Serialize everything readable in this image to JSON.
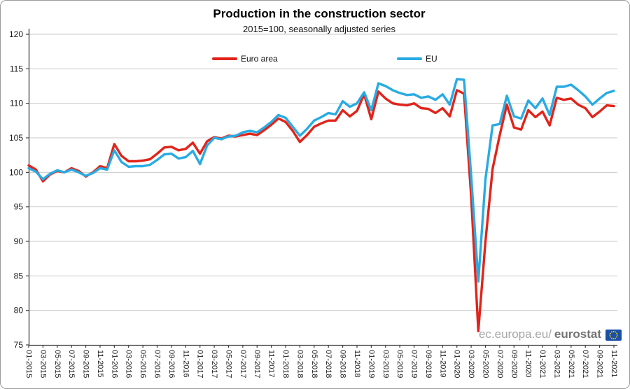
{
  "page": {
    "watermark_prefix": "ec.europa.eu/",
    "watermark_bold": "eurostat"
  },
  "chart_data": {
    "type": "line",
    "title": "Production in the construction sector",
    "subtitle": "2015=100, seasonally adjusted series",
    "legend_position": "top",
    "grid": true,
    "ylim": [
      75,
      120
    ],
    "ytick_step": 5,
    "x_tick_every": 2,
    "x": [
      "01-2015",
      "02-2015",
      "03-2015",
      "04-2015",
      "05-2015",
      "06-2015",
      "07-2015",
      "08-2015",
      "09-2015",
      "10-2015",
      "11-2015",
      "12-2015",
      "01-2016",
      "02-2016",
      "03-2016",
      "04-2016",
      "05-2016",
      "06-2016",
      "07-2016",
      "08-2016",
      "09-2016",
      "10-2016",
      "11-2016",
      "12-2016",
      "01-2017",
      "02-2017",
      "03-2017",
      "04-2017",
      "05-2017",
      "06-2017",
      "07-2017",
      "08-2017",
      "09-2017",
      "10-2017",
      "11-2017",
      "12-2017",
      "01-2018",
      "02-2018",
      "03-2018",
      "04-2018",
      "05-2018",
      "06-2018",
      "07-2018",
      "08-2018",
      "09-2018",
      "10-2018",
      "11-2018",
      "12-2018",
      "01-2019",
      "02-2019",
      "03-2019",
      "04-2019",
      "05-2019",
      "06-2019",
      "07-2019",
      "08-2019",
      "09-2019",
      "10-2019",
      "11-2019",
      "12-2019",
      "01-2020",
      "02-2020",
      "03-2020",
      "04-2020",
      "05-2020",
      "06-2020",
      "07-2020",
      "08-2020",
      "09-2020",
      "10-2020",
      "11-2020",
      "12-2020",
      "01-2021",
      "02-2021",
      "03-2021",
      "04-2021",
      "05-2021",
      "06-2021",
      "07-2021",
      "08-2021",
      "09-2021",
      "10-2021",
      "11-2021"
    ],
    "series": [
      {
        "name": "Euro area",
        "color": "#e2231a",
        "values": [
          101.0,
          100.4,
          98.7,
          99.7,
          100.2,
          100.0,
          100.6,
          100.2,
          99.4,
          100.0,
          100.9,
          100.6,
          104.1,
          102.4,
          101.6,
          101.6,
          101.7,
          101.9,
          102.7,
          103.6,
          103.7,
          103.2,
          103.4,
          104.3,
          102.7,
          104.5,
          105.1,
          104.9,
          105.3,
          105.2,
          105.4,
          105.6,
          105.4,
          106.1,
          106.9,
          107.8,
          107.3,
          106.0,
          104.4,
          105.4,
          106.6,
          107.1,
          107.5,
          107.5,
          109.0,
          108.1,
          108.9,
          111.3,
          107.7,
          111.7,
          110.7,
          110.0,
          109.8,
          109.7,
          110.0,
          109.3,
          109.2,
          108.6,
          109.3,
          108.1,
          111.9,
          111.4,
          96.5,
          77.0,
          90.0,
          100.5,
          105.4,
          109.8,
          106.5,
          106.2,
          109.0,
          108.0,
          108.8,
          106.8,
          110.8,
          110.5,
          110.7,
          109.8,
          109.3,
          108.0,
          108.8,
          109.7,
          109.6
        ]
      },
      {
        "name": "EU",
        "color": "#29abe2",
        "values": [
          100.6,
          100.1,
          99.0,
          99.8,
          100.3,
          100.0,
          100.4,
          100.0,
          99.5,
          99.9,
          100.6,
          100.4,
          103.2,
          101.5,
          100.8,
          100.9,
          100.9,
          101.1,
          101.8,
          102.6,
          102.7,
          102.0,
          102.2,
          103.1,
          101.2,
          103.9,
          105.0,
          104.8,
          105.2,
          105.3,
          105.8,
          106.0,
          105.8,
          106.5,
          107.3,
          108.3,
          107.9,
          106.6,
          105.3,
          106.3,
          107.5,
          108.0,
          108.6,
          108.4,
          110.3,
          109.5,
          110.0,
          111.6,
          109.0,
          112.9,
          112.5,
          111.9,
          111.5,
          111.2,
          111.3,
          110.8,
          111.0,
          110.5,
          111.3,
          109.8,
          113.5,
          113.4,
          99.5,
          84.2,
          99.0,
          106.8,
          107.0,
          111.1,
          108.1,
          107.8,
          110.4,
          109.3,
          110.7,
          108.3,
          112.4,
          112.4,
          112.7,
          111.9,
          111.0,
          109.8,
          110.7,
          111.5,
          111.8
        ]
      }
    ]
  }
}
